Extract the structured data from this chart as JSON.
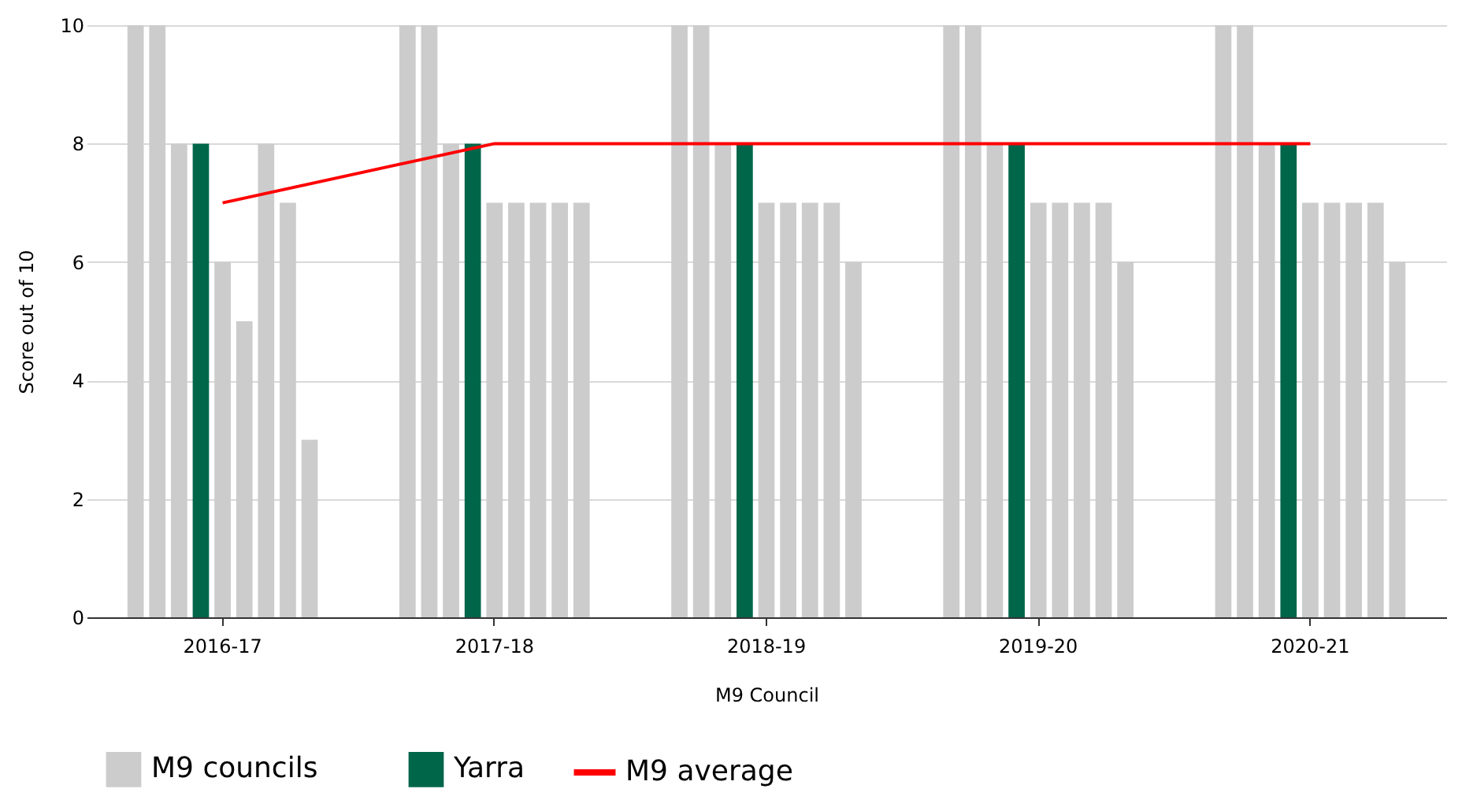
{
  "chart_data": {
    "type": "bar",
    "xlabel": "M9 Council",
    "ylabel": "Score out of 10",
    "categories": [
      "2016-17",
      "2017-18",
      "2018-19",
      "2019-20",
      "2020-21"
    ],
    "series": [
      {
        "name": "M9 councils",
        "color": "#cccccc",
        "values": [
          10,
          10,
          10,
          10,
          10
        ]
      },
      {
        "color": "#cccccc",
        "values": [
          10,
          10,
          10,
          10,
          10
        ]
      },
      {
        "color": "#cccccc",
        "values": [
          8,
          8,
          8,
          8,
          8
        ]
      },
      {
        "name": "Yarra",
        "color": "#00664a",
        "values": [
          8,
          8,
          8,
          8,
          8
        ]
      },
      {
        "color": "#cccccc",
        "values": [
          6,
          7,
          7,
          7,
          7
        ]
      },
      {
        "color": "#cccccc",
        "values": [
          5,
          7,
          7,
          7,
          7
        ]
      },
      {
        "color": "#cccccc",
        "values": [
          8,
          7,
          7,
          7,
          7
        ]
      },
      {
        "color": "#cccccc",
        "values": [
          7,
          7,
          7,
          7,
          7
        ]
      },
      {
        "color": "#cccccc",
        "values": [
          3,
          7,
          6,
          6,
          6
        ]
      },
      {
        "name": "M9 average",
        "type": "line",
        "color": "#ff0000",
        "values": [
          7,
          8,
          8,
          8,
          8
        ]
      }
    ],
    "ylim": [
      0,
      10
    ],
    "yticks": [
      0,
      2,
      4,
      6,
      8,
      10
    ],
    "grid": "y",
    "legend": "bottom"
  }
}
